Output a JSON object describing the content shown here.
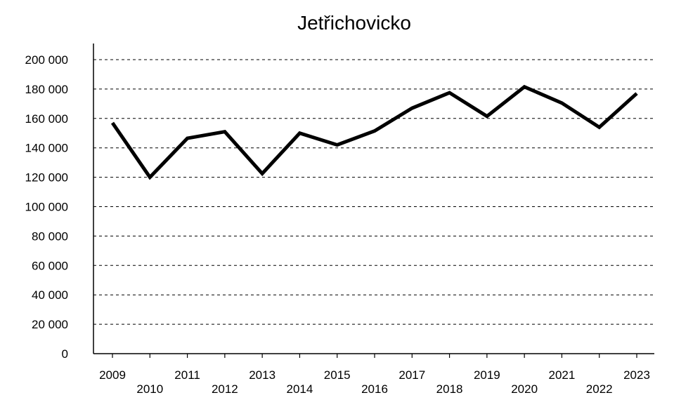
{
  "chart_data": {
    "type": "line",
    "title": "Jetřichovicko",
    "xlabel": "",
    "ylabel": "",
    "ylim": [
      0,
      200000
    ],
    "yticks": [
      "0",
      "20 000",
      "40 000",
      "60 000",
      "80 000",
      "100 000",
      "120 000",
      "140 000",
      "160 000",
      "180 000",
      "200 000"
    ],
    "ytick_values": [
      0,
      20000,
      40000,
      60000,
      80000,
      100000,
      120000,
      140000,
      160000,
      180000,
      200000
    ],
    "grid": true,
    "legend": false,
    "categories": [
      "2009",
      "2010",
      "2011",
      "2012",
      "2013",
      "2014",
      "2015",
      "2016",
      "2017",
      "2018",
      "2019",
      "2020",
      "2021",
      "2022",
      "2023"
    ],
    "series": [
      {
        "values": [
          157000,
          120000,
          146500,
          151000,
          122500,
          150000,
          142000,
          151500,
          167000,
          177500,
          161500,
          181500,
          170500,
          154000,
          177000
        ],
        "color": "#000000"
      }
    ]
  }
}
